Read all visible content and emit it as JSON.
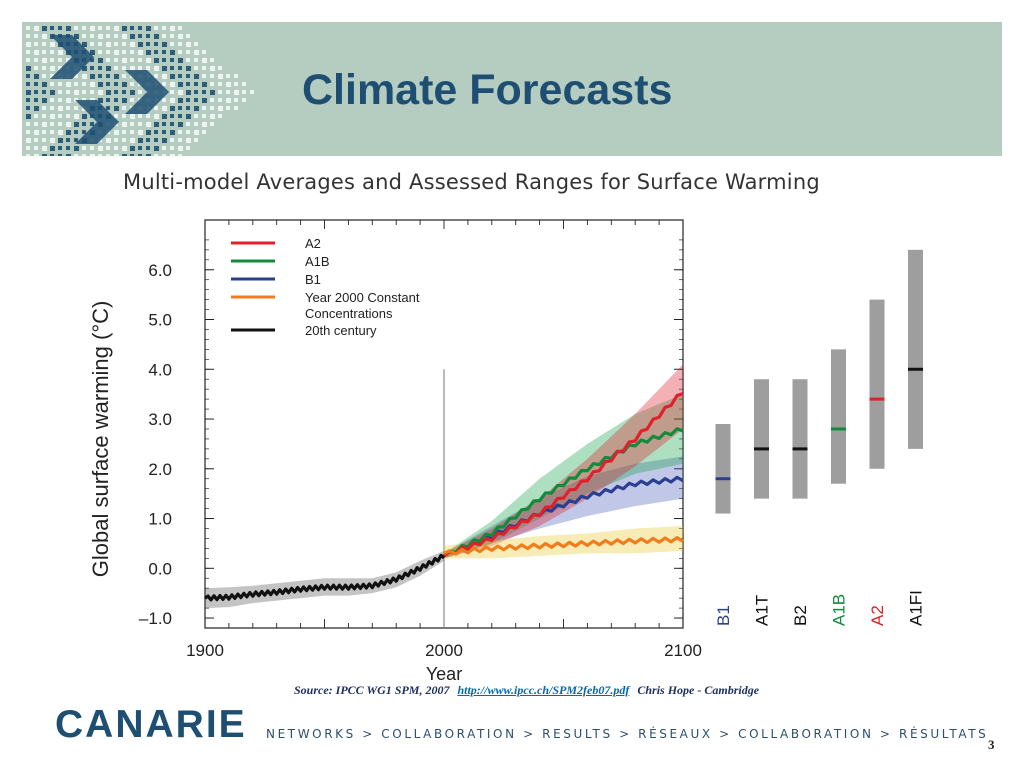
{
  "slide": {
    "title": "Climate Forecasts",
    "page_number": "3",
    "footer_logo": "CANARIE",
    "footer_tagline": "NETWORKS > COLLABORATION > RESULTS > RÉSEAUX > COLLABORATION > RÉSULTATS",
    "source_prefix": "Source: IPCC WG1 SPM, 2007",
    "source_link": "http://www.ipcc.ch/SPM2feb07.pdf",
    "source_suffix": "Chris Hope - Cambridge",
    "colors": {
      "header_bg": "#b5cdc1",
      "title": "#1e4f72",
      "pattern_dark": "#1e4f72",
      "pattern_light": "#ffffff"
    }
  },
  "chart_data": {
    "type": "line",
    "title": "Multi-model Averages and Assessed Ranges for Surface Warming",
    "xlabel": "Year",
    "ylabel": "Global surface warming (°C)",
    "xlim": [
      1900,
      2100
    ],
    "ylim": [
      -1.2,
      7.0
    ],
    "x_ticks": [
      "1900",
      "2000",
      "2100"
    ],
    "y_ticks": [
      "6.0",
      "5.0",
      "4.0",
      "3.0",
      "2.0",
      "1.0",
      "0.0",
      "–1.0"
    ],
    "y_tick_values": [
      6,
      5,
      4,
      3,
      2,
      1,
      0,
      -1
    ],
    "legend_position": "top-left",
    "series": [
      {
        "name": "A2",
        "color": "#e0202a",
        "x": [
          2000,
          2020,
          2040,
          2060,
          2080,
          2100
        ],
        "values": [
          0.25,
          0.6,
          1.1,
          1.8,
          2.6,
          3.55
        ],
        "range_low": [
          0.2,
          0.45,
          0.85,
          1.4,
          2.05,
          2.8
        ],
        "range_high": [
          0.3,
          0.8,
          1.4,
          2.2,
          3.1,
          4.1
        ]
      },
      {
        "name": "A1B",
        "color": "#138a3c",
        "x": [
          2000,
          2020,
          2040,
          2060,
          2080,
          2100
        ],
        "values": [
          0.25,
          0.7,
          1.4,
          2.0,
          2.5,
          2.8
        ],
        "range_low": [
          0.2,
          0.5,
          1.0,
          1.5,
          1.9,
          2.1
        ],
        "range_high": [
          0.3,
          0.95,
          1.8,
          2.5,
          3.1,
          3.5
        ]
      },
      {
        "name": "B1",
        "color": "#2b3f92",
        "x": [
          2000,
          2020,
          2040,
          2060,
          2080,
          2100
        ],
        "values": [
          0.25,
          0.65,
          1.1,
          1.45,
          1.7,
          1.8
        ],
        "range_low": [
          0.2,
          0.5,
          0.8,
          1.05,
          1.25,
          1.4
        ],
        "range_high": [
          0.3,
          0.85,
          1.4,
          1.85,
          2.1,
          2.25
        ]
      },
      {
        "name": "Year 2000 Constant Concentrations",
        "color": "#f07c1c",
        "x": [
          2000,
          2020,
          2040,
          2060,
          2080,
          2100
        ],
        "values": [
          0.3,
          0.4,
          0.45,
          0.5,
          0.55,
          0.58
        ],
        "range_low": [
          0.2,
          0.2,
          0.25,
          0.3,
          0.3,
          0.35
        ],
        "range_high": [
          0.45,
          0.55,
          0.65,
          0.7,
          0.8,
          0.85
        ]
      },
      {
        "name": "20th century",
        "color": "#111111",
        "x": [
          1900,
          1910,
          1920,
          1930,
          1940,
          1950,
          1960,
          1970,
          1980,
          1990,
          2000
        ],
        "values": [
          -0.6,
          -0.58,
          -0.52,
          -0.48,
          -0.42,
          -0.38,
          -0.38,
          -0.35,
          -0.22,
          0.0,
          0.25
        ],
        "range_low": [
          -0.8,
          -0.78,
          -0.7,
          -0.65,
          -0.6,
          -0.55,
          -0.55,
          -0.5,
          -0.38,
          -0.15,
          0.15
        ],
        "range_high": [
          -0.4,
          -0.38,
          -0.35,
          -0.3,
          -0.25,
          -0.2,
          -0.2,
          -0.2,
          -0.08,
          0.15,
          0.35
        ]
      }
    ],
    "assessed_ranges": [
      {
        "label": "B1",
        "low": 1.1,
        "high": 2.9,
        "best": 1.8,
        "color": "#2b3f92"
      },
      {
        "label": "A1T",
        "low": 1.4,
        "high": 3.8,
        "best": 2.4,
        "color": "#111111"
      },
      {
        "label": "B2",
        "low": 1.4,
        "high": 3.8,
        "best": 2.4,
        "color": "#111111"
      },
      {
        "label": "A1B",
        "low": 1.7,
        "high": 4.4,
        "best": 2.8,
        "color": "#138a3c"
      },
      {
        "label": "A2",
        "low": 2.0,
        "high": 5.4,
        "best": 3.4,
        "color": "#e0202a"
      },
      {
        "label": "A1FI",
        "low": 2.4,
        "high": 6.4,
        "best": 4.0,
        "color": "#111111"
      }
    ]
  }
}
